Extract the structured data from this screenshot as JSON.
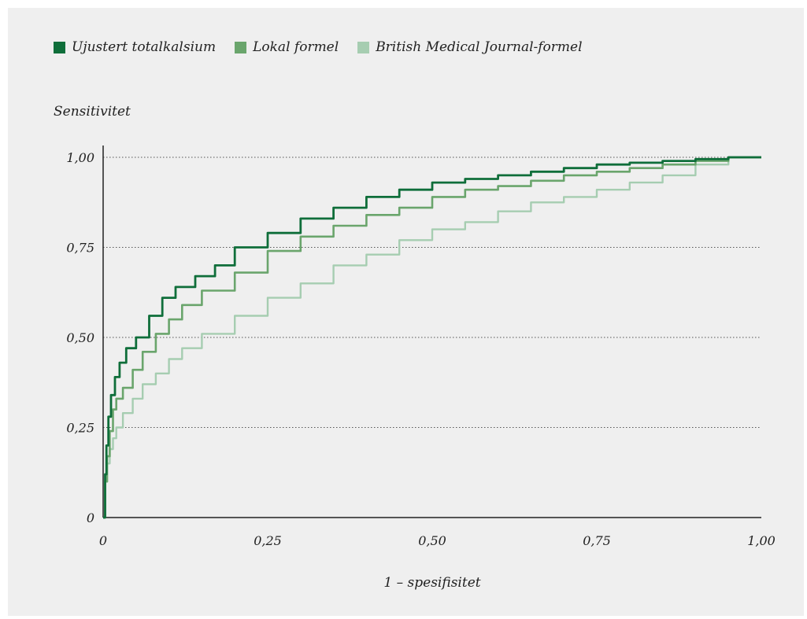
{
  "colors": {
    "background": "#efefef",
    "axis": "#222222",
    "grid": "#555555"
  },
  "legend": [
    {
      "label": "Ujustert totalkalsium",
      "color": "#0f6e3a"
    },
    {
      "label": "Lokal formel",
      "color": "#6aa56c"
    },
    {
      "label": "British Medical Journal-formel",
      "color": "#a6cdb1"
    }
  ],
  "chart_data": {
    "type": "line",
    "title": "",
    "xlabel": "1 – spesifisitet",
    "ylabel": "Sensitivitet",
    "xlim": [
      0,
      1
    ],
    "ylim": [
      0,
      1
    ],
    "x_ticks": [
      0,
      0.25,
      0.5,
      0.75,
      1
    ],
    "x_tick_labels": [
      "0",
      "0,25",
      "0,50",
      "0,75",
      "1,00"
    ],
    "y_ticks": [
      0,
      0.25,
      0.5,
      0.75,
      1
    ],
    "y_tick_labels": [
      "0",
      "0,25",
      "0,50",
      "0,75",
      "1,00"
    ],
    "grid": "horizontal dotted",
    "legend_position": "top-left",
    "series": [
      {
        "name": "Ujustert totalkalsium",
        "color": "#0f6e3a",
        "x": [
          0,
          0.003,
          0.005,
          0.008,
          0.012,
          0.018,
          0.025,
          0.035,
          0.05,
          0.07,
          0.09,
          0.11,
          0.14,
          0.17,
          0.2,
          0.25,
          0.3,
          0.35,
          0.4,
          0.45,
          0.5,
          0.55,
          0.6,
          0.65,
          0.7,
          0.75,
          0.8,
          0.85,
          0.9,
          0.95,
          1.0
        ],
        "y": [
          0,
          0.12,
          0.2,
          0.28,
          0.34,
          0.39,
          0.43,
          0.47,
          0.5,
          0.56,
          0.61,
          0.64,
          0.67,
          0.7,
          0.75,
          0.79,
          0.83,
          0.86,
          0.89,
          0.91,
          0.93,
          0.94,
          0.95,
          0.96,
          0.97,
          0.98,
          0.985,
          0.99,
          0.995,
          1.0,
          1.0
        ]
      },
      {
        "name": "Lokal formel",
        "color": "#6aa56c",
        "x": [
          0,
          0.003,
          0.006,
          0.01,
          0.015,
          0.02,
          0.03,
          0.045,
          0.06,
          0.08,
          0.1,
          0.12,
          0.15,
          0.2,
          0.25,
          0.3,
          0.35,
          0.4,
          0.45,
          0.5,
          0.55,
          0.6,
          0.65,
          0.7,
          0.75,
          0.8,
          0.85,
          0.9,
          0.95,
          1.0
        ],
        "y": [
          0,
          0.1,
          0.17,
          0.24,
          0.3,
          0.33,
          0.36,
          0.41,
          0.46,
          0.51,
          0.55,
          0.59,
          0.63,
          0.68,
          0.74,
          0.78,
          0.81,
          0.84,
          0.86,
          0.89,
          0.91,
          0.92,
          0.935,
          0.95,
          0.96,
          0.97,
          0.98,
          0.99,
          1.0,
          1.0
        ]
      },
      {
        "name": "British Medical Journal-formel",
        "color": "#a6cdb1",
        "x": [
          0,
          0.003,
          0.006,
          0.01,
          0.015,
          0.02,
          0.03,
          0.045,
          0.06,
          0.08,
          0.1,
          0.12,
          0.15,
          0.2,
          0.25,
          0.3,
          0.35,
          0.4,
          0.45,
          0.5,
          0.55,
          0.6,
          0.65,
          0.7,
          0.75,
          0.8,
          0.85,
          0.9,
          0.95,
          1.0
        ],
        "y": [
          0,
          0.1,
          0.15,
          0.19,
          0.22,
          0.25,
          0.29,
          0.33,
          0.37,
          0.4,
          0.44,
          0.47,
          0.51,
          0.56,
          0.61,
          0.65,
          0.7,
          0.73,
          0.77,
          0.8,
          0.82,
          0.85,
          0.875,
          0.89,
          0.91,
          0.93,
          0.95,
          0.98,
          1.0,
          1.0
        ]
      }
    ]
  }
}
